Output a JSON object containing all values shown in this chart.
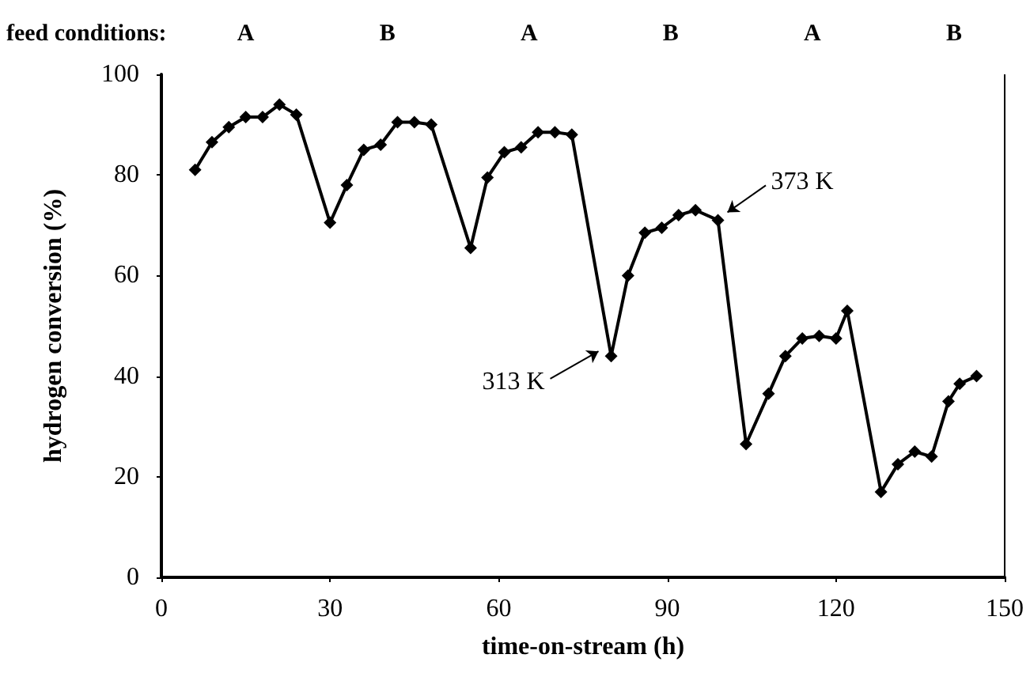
{
  "chart_data": {
    "type": "line",
    "xlabel": "time-on-stream (h)",
    "ylabel": "hydrogen conversion (%)",
    "x": [
      6,
      9,
      12,
      15,
      18,
      21,
      24,
      30,
      33,
      36,
      39,
      42,
      45,
      48,
      55,
      58,
      61,
      64,
      67,
      70,
      73,
      80,
      83,
      86,
      89,
      92,
      95,
      99,
      104,
      108,
      111,
      114,
      117,
      120,
      122,
      128,
      131,
      134,
      137,
      140,
      142,
      145
    ],
    "series": [
      {
        "color": "#000000",
        "values": [
          81,
          86.5,
          89.5,
          91.5,
          91.5,
          94,
          92,
          70.5,
          78,
          85,
          86,
          90.5,
          90.5,
          90,
          65.5,
          79.5,
          84.5,
          85.5,
          88.5,
          88.5,
          88,
          44,
          60,
          68.5,
          69.5,
          72,
          73,
          71,
          26.5,
          36.5,
          44,
          47.5,
          48,
          47.5,
          53,
          17,
          22.5,
          25,
          24,
          35,
          38.5,
          40
        ]
      }
    ],
    "xlim": [
      0,
      150
    ],
    "xticks": [
      0,
      30,
      60,
      90,
      120,
      150
    ],
    "ylim": [
      0,
      100
    ],
    "yticks": [
      0,
      20,
      40,
      60,
      80,
      100
    ],
    "grid": false,
    "marker": "diamond",
    "line_style": "solid",
    "annotations": [
      "feed conditions:",
      "A",
      "B",
      "A",
      "B",
      "A",
      "B",
      {
        "text": "313 K",
        "x": 80,
        "y": 44
      },
      {
        "text": "373 K",
        "x": 99,
        "y": 71
      }
    ]
  }
}
